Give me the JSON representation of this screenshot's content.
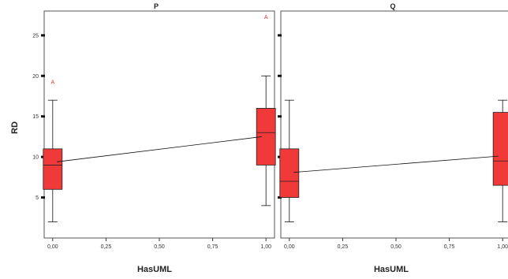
{
  "chart_data": {
    "type": "boxplot",
    "ylabel": "RD",
    "ylim": [
      0,
      28
    ],
    "xlim": [
      -0.04,
      1.04
    ],
    "y_ticks": [
      5,
      10,
      15,
      20,
      25
    ],
    "x_tick_labels": [
      "0,00",
      "0,25",
      "0,50",
      "0,75",
      "1,00"
    ],
    "x_tick_values": [
      0,
      0.25,
      0.5,
      0.75,
      1
    ],
    "box_color": "#f03a3a",
    "panels": [
      {
        "title": "P",
        "xlabel": "HasUML",
        "boxes": [
          {
            "x": 0,
            "min": 2,
            "q1": 6,
            "median": 9,
            "q3": 11,
            "max": 17,
            "outliers": [
              {
                "value": 19.2,
                "marker": "A"
              }
            ]
          },
          {
            "x": 1,
            "min": 4,
            "q1": 9,
            "median": 13,
            "q3": 16,
            "max": 20,
            "outliers": [
              {
                "value": 27.2,
                "marker": "A"
              }
            ]
          }
        ],
        "fit_line": {
          "x": [
            0.02,
            0.98
          ],
          "y": [
            9.4,
            12.5
          ]
        }
      },
      {
        "title": "Q",
        "xlabel": "HasUML",
        "boxes": [
          {
            "x": 0,
            "min": 2,
            "q1": 5,
            "median": 7,
            "q3": 11,
            "max": 17,
            "outliers": []
          },
          {
            "x": 1,
            "min": 2,
            "q1": 6.5,
            "median": 9.5,
            "q3": 15.5,
            "max": 17,
            "outliers": []
          }
        ],
        "fit_line": {
          "x": [
            0.02,
            0.98
          ],
          "y": [
            8.1,
            10.1
          ]
        }
      }
    ]
  }
}
